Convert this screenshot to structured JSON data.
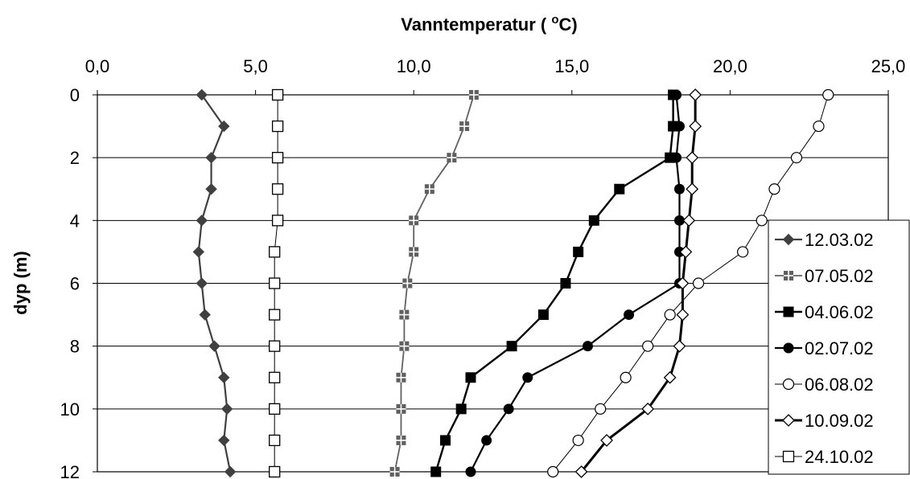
{
  "chart_data": {
    "type": "line",
    "title": "",
    "xlabel": "Vanntemperatur ( °C)",
    "xlabel_main": "Vanntemperatur ( ",
    "xlabel_sup": "o",
    "xlabel_end": "C)",
    "ylabel": "dyp (m)",
    "xlim": [
      0,
      25
    ],
    "ylim": [
      0,
      12
    ],
    "y_inverted": true,
    "x_axis_position": "top",
    "x_ticks": [
      0,
      5,
      10,
      15,
      20,
      25
    ],
    "x_tick_labels": [
      "0,0",
      "5,0",
      "10,0",
      "15,0",
      "20,0",
      "25,0"
    ],
    "y_ticks": [
      0,
      2,
      4,
      6,
      8,
      10,
      12
    ],
    "y_tick_labels": [
      "0",
      "2",
      "4",
      "6",
      "8",
      "10",
      "12"
    ],
    "grid": "horizontal",
    "legend_position": "right",
    "series": [
      {
        "name": "12.03.02",
        "marker": "diamond-filled",
        "color": "#404040",
        "depth": [
          0,
          1,
          2,
          3,
          4,
          5,
          6,
          7,
          8,
          9,
          10,
          11,
          12
        ],
        "temp": [
          3.3,
          4.0,
          3.6,
          3.6,
          3.3,
          3.2,
          3.3,
          3.4,
          3.7,
          4.0,
          4.1,
          4.0,
          4.2
        ]
      },
      {
        "name": "07.05.02",
        "marker": "cross-square",
        "color": "#606060",
        "depth": [
          0,
          1,
          2,
          3,
          4,
          5,
          6,
          7,
          8,
          9,
          10,
          11,
          12
        ],
        "temp": [
          11.9,
          11.6,
          11.2,
          10.5,
          10.0,
          10.0,
          9.8,
          9.7,
          9.7,
          9.6,
          9.6,
          9.6,
          9.4
        ]
      },
      {
        "name": "04.06.02",
        "marker": "square-filled",
        "color": "#000000",
        "depth": [
          0,
          1,
          2,
          3,
          4,
          5,
          6,
          7,
          8,
          9,
          10,
          11,
          12
        ],
        "temp": [
          18.2,
          18.2,
          18.1,
          16.5,
          15.7,
          15.2,
          14.8,
          14.1,
          13.1,
          11.8,
          11.5,
          11.0,
          10.7
        ]
      },
      {
        "name": "02.07.02",
        "marker": "circle-filled",
        "color": "#000000",
        "depth": [
          0,
          1,
          2,
          3,
          4,
          5,
          6,
          7,
          8,
          9,
          10,
          11,
          12
        ],
        "temp": [
          18.3,
          18.4,
          18.3,
          18.4,
          18.4,
          18.4,
          18.4,
          16.8,
          15.5,
          13.6,
          13.0,
          12.3,
          11.8
        ]
      },
      {
        "name": "06.08.02",
        "marker": "circle-open",
        "color": "#000000",
        "depth": [
          0,
          1,
          2,
          3,
          4,
          5,
          6,
          7,
          8,
          9,
          10,
          11,
          12
        ],
        "temp": [
          23.1,
          22.8,
          22.1,
          21.4,
          21.0,
          20.4,
          19.0,
          18.1,
          17.4,
          16.7,
          15.9,
          15.2,
          14.4
        ]
      },
      {
        "name": "10.09.02",
        "marker": "diamond-open",
        "color": "#000000",
        "depth": [
          0,
          1,
          2,
          3,
          4,
          5,
          6,
          7,
          8,
          9,
          10,
          11,
          12
        ],
        "temp": [
          18.9,
          18.9,
          18.8,
          18.8,
          18.7,
          18.6,
          18.5,
          18.5,
          18.4,
          18.1,
          17.4,
          16.1,
          15.3
        ]
      },
      {
        "name": "24.10.02",
        "marker": "square-open",
        "color": "#000000",
        "depth": [
          0,
          1,
          2,
          3,
          4,
          5,
          6,
          7,
          8,
          9,
          10,
          11,
          12
        ],
        "temp": [
          5.7,
          5.7,
          5.7,
          5.7,
          5.7,
          5.6,
          5.6,
          5.6,
          5.6,
          5.6,
          5.6,
          5.6,
          5.6
        ]
      }
    ]
  }
}
